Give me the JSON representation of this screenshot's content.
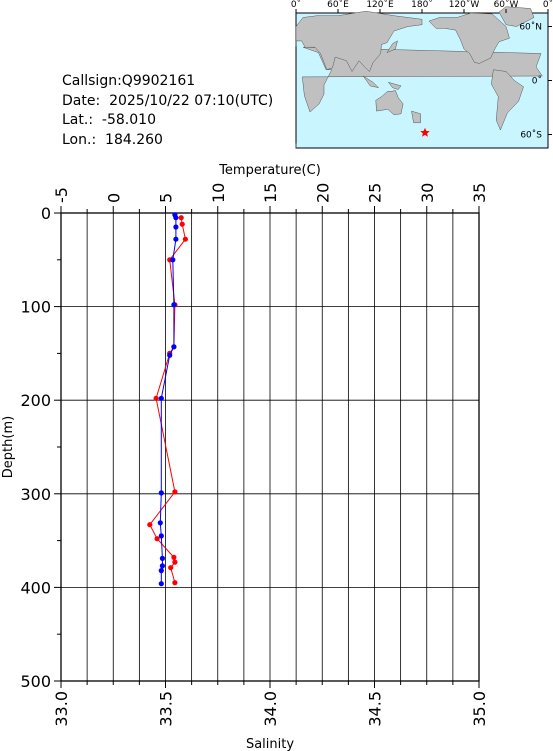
{
  "info": {
    "callsign": "Callsign:Q9902161",
    "date": "Date:  2025/10/22 07:10(UTC)",
    "lat": "Lat.:  -58.010",
    "lon": "Lon.:  184.260"
  },
  "map": {
    "top_labels": [
      "0˚",
      "60˚E",
      "120˚E",
      "180˚",
      "120˚W",
      "60˚W",
      "0˚"
    ],
    "right_labels": [
      "60˚N",
      "0˚",
      "60˚S"
    ],
    "ocean_color": "#c8f5ff",
    "land_color": "#c0c0c0",
    "marker": {
      "lat": -58.01,
      "lon": 184.26,
      "color": "#ff0000",
      "icon": "star"
    }
  },
  "chart_data": {
    "type": "line",
    "ylabel": "Depth(m)",
    "ylim": [
      0,
      500
    ],
    "y_ticks": [
      "0",
      "100",
      "200",
      "300",
      "400",
      "500"
    ],
    "temperature_axis": {
      "label": "Temperature(C)",
      "range": [
        -5,
        35
      ],
      "ticks": [
        "-5",
        "0",
        "5",
        "10",
        "15",
        "20",
        "25",
        "30",
        "35"
      ],
      "color": "#ff0000"
    },
    "salinity_axis": {
      "label": "Salinity",
      "range": [
        33.0,
        35.0
      ],
      "ticks": [
        "33.0",
        "33.5",
        "34.0",
        "34.5",
        "35.0"
      ],
      "color": "#0000ff"
    },
    "grid": true,
    "series": [
      {
        "axis": "temperature",
        "color": "#ff0000",
        "points": [
          [
            6.5,
            5
          ],
          [
            6.6,
            12
          ],
          [
            6.9,
            28
          ],
          [
            5.4,
            50
          ],
          [
            5.9,
            98
          ],
          [
            5.8,
            143
          ],
          [
            5.4,
            150
          ],
          [
            4.1,
            198
          ],
          [
            5.9,
            298
          ],
          [
            3.5,
            333
          ],
          [
            4.2,
            348
          ],
          [
            5.8,
            368
          ],
          [
            5.9,
            373
          ],
          [
            5.5,
            379
          ],
          [
            5.9,
            395
          ]
        ]
      },
      {
        "axis": "salinity",
        "color": "#0000ff",
        "points": [
          [
            33.545,
            2
          ],
          [
            33.55,
            5
          ],
          [
            33.55,
            15
          ],
          [
            33.55,
            28
          ],
          [
            33.535,
            50
          ],
          [
            33.54,
            98
          ],
          [
            33.54,
            143
          ],
          [
            33.52,
            152
          ],
          [
            33.48,
            198
          ],
          [
            33.48,
            299
          ],
          [
            33.475,
            331
          ],
          [
            33.48,
            345
          ],
          [
            33.485,
            369
          ],
          [
            33.485,
            377
          ],
          [
            33.48,
            382
          ],
          [
            33.48,
            396
          ]
        ]
      }
    ]
  }
}
